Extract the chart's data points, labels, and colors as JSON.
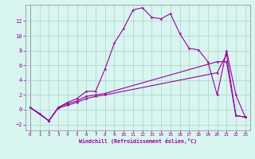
{
  "xlabel": "Windchill (Refroidissement éolien,°C)",
  "background_color": "#d8f5f0",
  "grid_color": "#b0d0cc",
  "line_color": "#990099",
  "xlim": [
    -0.5,
    23.5
  ],
  "ylim": [
    -2.8,
    14.2
  ],
  "xticks": [
    0,
    1,
    2,
    3,
    4,
    5,
    6,
    7,
    8,
    9,
    10,
    11,
    12,
    13,
    14,
    15,
    16,
    17,
    18,
    19,
    20,
    21,
    22,
    23
  ],
  "yticks": [
    -2,
    0,
    2,
    4,
    6,
    8,
    10,
    12
  ],
  "series1": {
    "x": [
      0,
      1,
      2,
      3,
      4,
      5,
      6,
      7,
      8,
      9,
      10,
      11,
      12,
      13,
      14,
      15,
      16,
      17,
      18,
      19,
      20,
      21,
      22,
      23
    ],
    "y": [
      0.3,
      -0.5,
      -1.5,
      0.3,
      1.0,
      1.5,
      2.5,
      2.5,
      5.5,
      9.0,
      11.0,
      13.5,
      13.8,
      12.5,
      12.3,
      13.0,
      10.3,
      8.3,
      8.1,
      6.5,
      2.0,
      8.0,
      2.0,
      -1.0
    ]
  },
  "series2": {
    "x": [
      0,
      2,
      3,
      4,
      5,
      6,
      7,
      8,
      20,
      21,
      22,
      23
    ],
    "y": [
      0.3,
      -1.5,
      0.3,
      0.8,
      1.2,
      1.8,
      2.0,
      2.2,
      6.5,
      6.5,
      -0.8,
      -1.0
    ]
  },
  "series3": {
    "x": [
      0,
      2,
      3,
      4,
      5,
      6,
      7,
      8,
      20,
      21,
      22,
      23
    ],
    "y": [
      0.3,
      -1.5,
      0.2,
      0.6,
      1.0,
      1.5,
      1.8,
      2.0,
      5.0,
      7.5,
      -0.8,
      -1.0
    ]
  }
}
